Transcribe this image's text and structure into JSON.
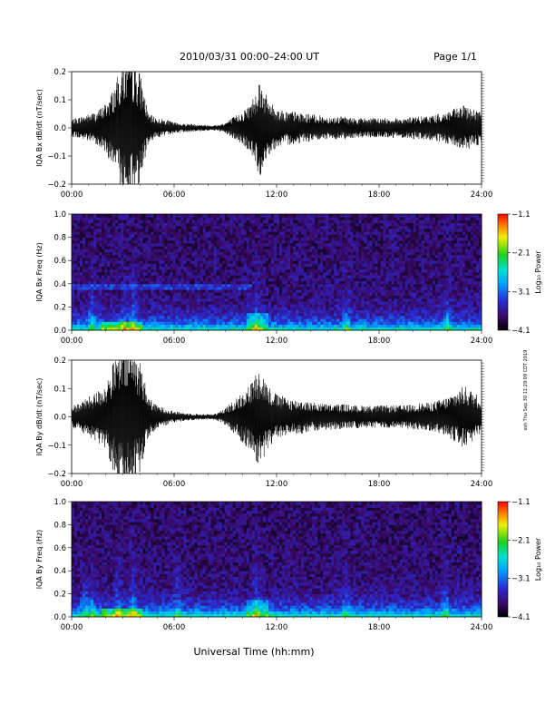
{
  "header": {
    "title": "2010/03/31   00:00–24:00 UT",
    "page": "Page 1/1"
  },
  "xaxis": {
    "label": "Universal Time (hh:mm)",
    "ticks": [
      "00:00",
      "06:00",
      "12:00",
      "18:00",
      "24:00"
    ]
  },
  "side_note": "ssh Thu Sep 30 11:29:09 CDT 2019",
  "chart_data": [
    {
      "type": "line",
      "ylabel": "IQA Bx dB/dt (nT/sec)",
      "ylim": [
        -0.2,
        0.2
      ],
      "yticks": [
        "0.2",
        "0.1",
        "0.0",
        "−0.1",
        "−0.2"
      ],
      "xlim": [
        0,
        24
      ],
      "x_hours": [
        0,
        0.5,
        1,
        1.5,
        2,
        2.5,
        3,
        3.5,
        4,
        4.5,
        5,
        5.5,
        6,
        6.5,
        7,
        7.5,
        8,
        8.5,
        9,
        9.5,
        10,
        10.5,
        11,
        11.5,
        12,
        12.5,
        13,
        13.5,
        14,
        14.5,
        15,
        15.5,
        16,
        16.5,
        17,
        17.5,
        18,
        18.5,
        19,
        19.5,
        20,
        20.5,
        21,
        21.5,
        22,
        22.5,
        23,
        23.5,
        24
      ],
      "amplitude": [
        0.03,
        0.04,
        0.05,
        0.06,
        0.09,
        0.15,
        0.25,
        0.25,
        0.2,
        0.05,
        0.035,
        0.03,
        0.02,
        0.015,
        0.015,
        0.012,
        0.01,
        0.01,
        0.02,
        0.04,
        0.06,
        0.09,
        0.18,
        0.1,
        0.07,
        0.06,
        0.06,
        0.05,
        0.05,
        0.045,
        0.04,
        0.04,
        0.04,
        0.035,
        0.035,
        0.035,
        0.035,
        0.035,
        0.035,
        0.035,
        0.04,
        0.04,
        0.045,
        0.05,
        0.06,
        0.07,
        0.08,
        0.07,
        0.06
      ]
    },
    {
      "type": "heatmap",
      "ylabel": "IQA Bx Freq (Hz)",
      "ylim": [
        0,
        1.0
      ],
      "yticks": [
        "1.0",
        "0.8",
        "0.6",
        "0.4",
        "0.2",
        "0.0"
      ],
      "xlim": [
        0,
        24
      ],
      "colorbar": {
        "label": "Log₁₀ Power",
        "ticks": [
          "−1.1",
          "−2.1",
          "−3.1",
          "−4.1"
        ],
        "range": [
          -4.1,
          -1.1
        ]
      }
    },
    {
      "type": "line",
      "ylabel": "IQA By dB/dt (nT/sec)",
      "ylim": [
        -0.2,
        0.2
      ],
      "yticks": [
        "0.2",
        "0.1",
        "0.0",
        "−0.1",
        "−0.2"
      ],
      "xlim": [
        0,
        24
      ],
      "x_hours": [
        0,
        0.5,
        1,
        1.5,
        2,
        2.5,
        3,
        3.5,
        4,
        4.5,
        5,
        5.5,
        6,
        6.5,
        7,
        7.5,
        8,
        8.5,
        9,
        9.5,
        10,
        10.5,
        11,
        11.5,
        12,
        12.5,
        13,
        13.5,
        14,
        14.5,
        15,
        15.5,
        16,
        16.5,
        17,
        17.5,
        18,
        18.5,
        19,
        19.5,
        20,
        20.5,
        21,
        21.5,
        22,
        22.5,
        23,
        23.5,
        24
      ],
      "amplitude": [
        0.04,
        0.05,
        0.07,
        0.09,
        0.12,
        0.2,
        0.25,
        0.25,
        0.2,
        0.07,
        0.04,
        0.03,
        0.02,
        0.015,
        0.012,
        0.01,
        0.01,
        0.012,
        0.03,
        0.06,
        0.09,
        0.12,
        0.18,
        0.11,
        0.08,
        0.07,
        0.06,
        0.06,
        0.05,
        0.05,
        0.045,
        0.045,
        0.045,
        0.04,
        0.04,
        0.04,
        0.04,
        0.04,
        0.04,
        0.04,
        0.045,
        0.05,
        0.05,
        0.06,
        0.07,
        0.09,
        0.11,
        0.09,
        0.07
      ]
    },
    {
      "type": "heatmap",
      "ylabel": "IQA By Freq (Hz)",
      "ylim": [
        0,
        1.0
      ],
      "yticks": [
        "1.0",
        "0.8",
        "0.6",
        "0.4",
        "0.2",
        "0.0"
      ],
      "xlim": [
        0,
        24
      ],
      "colorbar": {
        "label": "Log₁₀ Power",
        "ticks": [
          "−1.1",
          "−2.1",
          "−3.1",
          "−4.1"
        ],
        "range": [
          -4.1,
          -1.1
        ]
      }
    }
  ]
}
